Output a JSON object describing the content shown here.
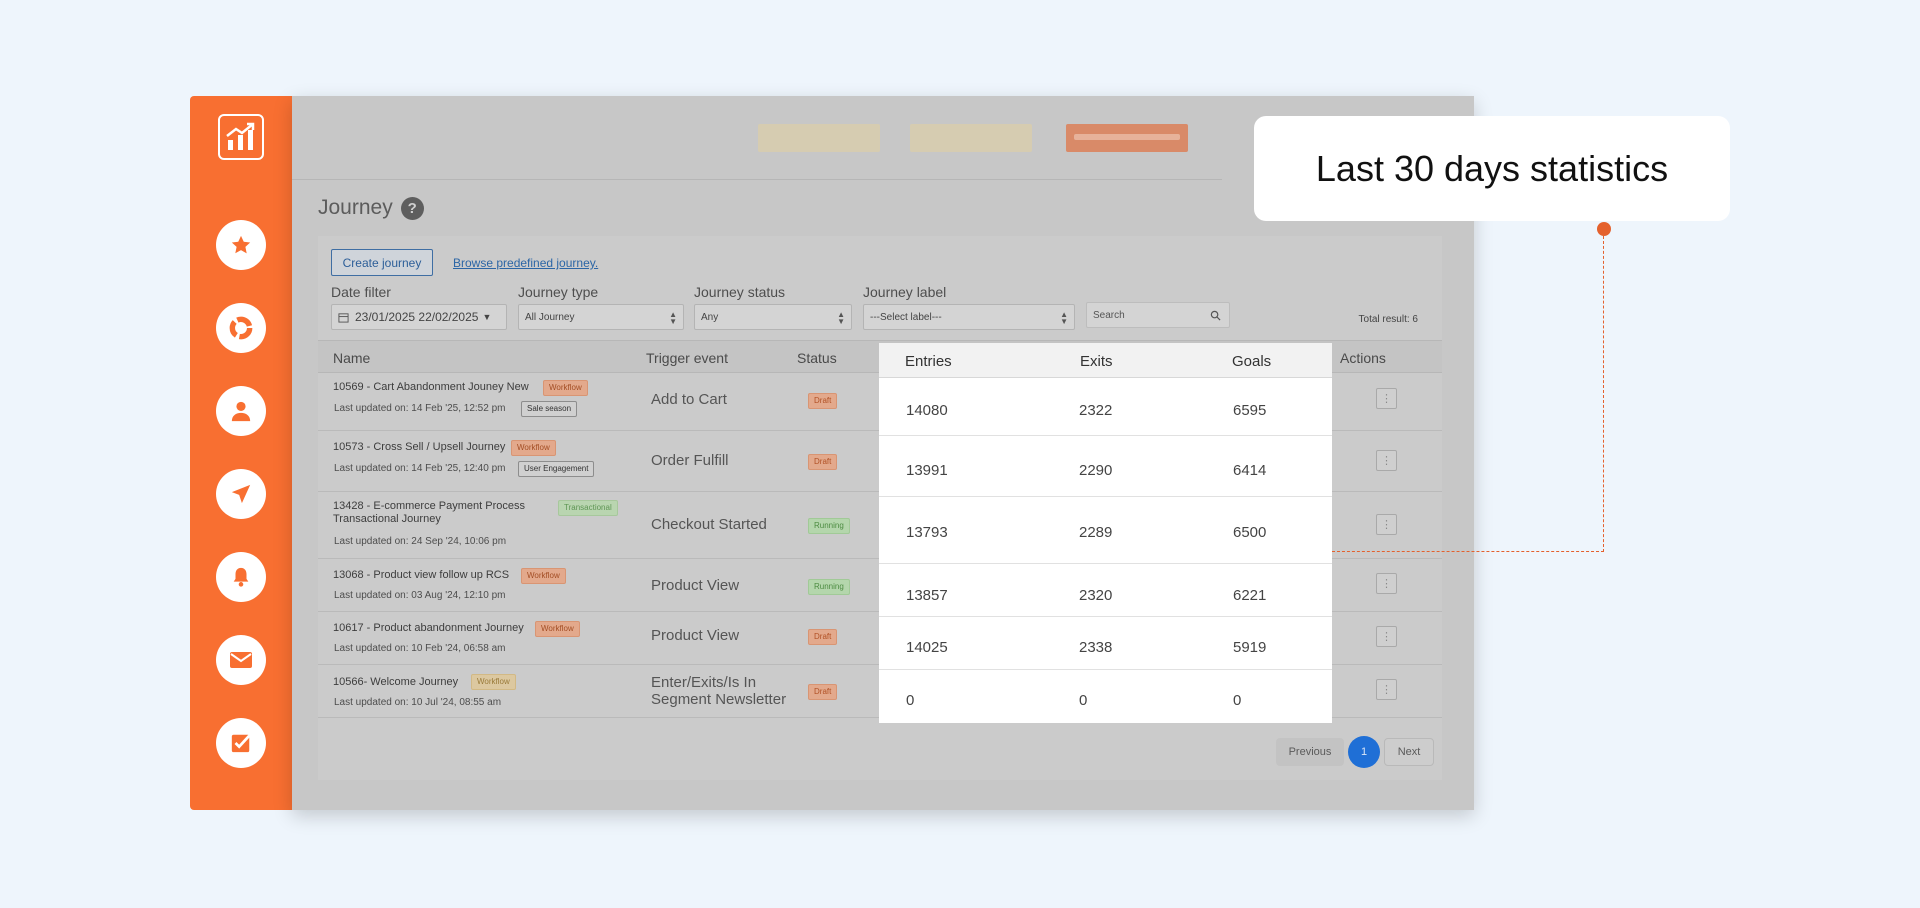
{
  "callout": {
    "text": "Last 30 days statistics"
  },
  "page": {
    "title": "Journey",
    "help": "?",
    "create_label": "Create journey",
    "browse_label": "Browse predefined journey.",
    "total_result": "Total result: 6"
  },
  "filters": {
    "date_label": "Date filter",
    "date_value": "23/01/2025 22/02/2025",
    "type_label": "Journey type",
    "type_value": "All Journey",
    "status_label": "Journey status",
    "status_value": "Any",
    "label_label": "Journey label",
    "label_value": "---Select label---",
    "search_placeholder": "Search"
  },
  "table": {
    "headers": {
      "name": "Name",
      "trigger": "Trigger event",
      "status": "Status",
      "entries": "Entries",
      "exits": "Exits",
      "goals": "Goals",
      "actions": "Actions"
    },
    "rows": [
      {
        "name": "10569 - Cart Abandonment Jouney New",
        "updated": "Last updated on: 14 Feb '25, 12:52 pm",
        "type": "Workflow",
        "label": "Sale season",
        "trigger": "Add to Cart",
        "status": "Draft",
        "entries": "14080",
        "exits": "2322",
        "goals": "6595"
      },
      {
        "name": "10573 - Cross Sell / Upsell Journey",
        "updated": "Last updated on: 14 Feb '25, 12:40 pm",
        "type": "Workflow",
        "label": "User Engagement",
        "trigger": "Order Fulfill",
        "status": "Draft",
        "entries": "13991",
        "exits": "2290",
        "goals": "6414"
      },
      {
        "name": "13428 - E-commerce Payment Process Transactional Journey",
        "name_line1": "13428 - E-commerce Payment Process",
        "name_line2": "Transactional Journey",
        "updated": "Last updated on: 24 Sep '24, 10:06 pm",
        "type": "Transactional",
        "trigger": "Checkout Started",
        "status": "Running",
        "entries": "13793",
        "exits": "2289",
        "goals": "6500"
      },
      {
        "name": "13068 - Product view follow up RCS",
        "updated": "Last updated on: 03 Aug '24, 12:10 pm",
        "type": "Workflow",
        "trigger": "Product View",
        "status": "Running",
        "entries": "13857",
        "exits": "2320",
        "goals": "6221"
      },
      {
        "name": "10617 - Product abandonment Journey",
        "updated": "Last updated on: 10 Feb '24, 06:58 am",
        "type": "Workflow",
        "trigger": "Product View",
        "status": "Draft",
        "entries": "14025",
        "exits": "2338",
        "goals": "5919"
      },
      {
        "name": "10566- Welcome Journey",
        "updated": "Last updated on: 10 Jul '24, 08:55 am",
        "type": "Workflow",
        "trigger": "Enter/Exits/Is In Segment Newsletter",
        "trigger_line1": "Enter/Exits/Is In",
        "trigger_line2": "Segment Newsletter",
        "status": "Draft",
        "entries": "0",
        "exits": "0",
        "goals": "0"
      }
    ]
  },
  "pagination": {
    "previous": "Previous",
    "current": "1",
    "next": "Next"
  },
  "colors": {
    "accent": "#f86f31",
    "callout_dot": "#e4612d",
    "pager_active": "#1f6fd6"
  },
  "icons": {
    "logo": "chart-logo-icon",
    "nav": [
      "star-icon",
      "pie-chart-icon",
      "user-icon",
      "send-icon",
      "bell-icon",
      "mail-icon",
      "checkbox-icon"
    ]
  }
}
